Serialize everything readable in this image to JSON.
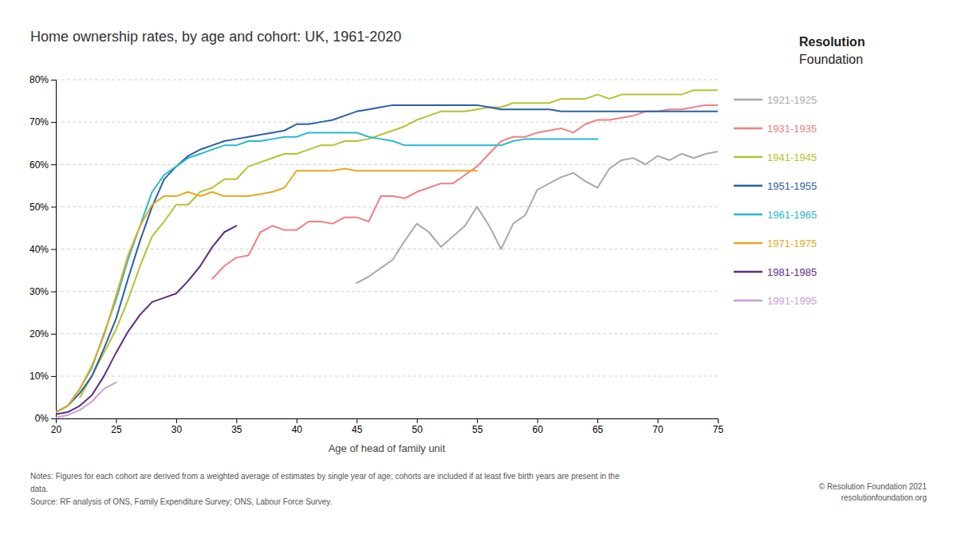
{
  "chart_data": {
    "type": "line",
    "title": "Home ownership rates, by age and cohort: UK, 1961-2020",
    "x_label": "Age of head of family unit",
    "annotations": [
      "Notes: Figures for each cohort are derived from a weighted average of estimates by single year of age; cohorts are included if at least five birth years are present in the",
      "data.",
      "Source: RF analysis of ONS, Family Expenditure Survey; ONS, Labour Force Survey.",
      "© Resolution Foundation 2021",
      "resolutionfoundation.org",
      "Resolution",
      "Foundation"
    ],
    "xlim": [
      20,
      75
    ],
    "xticks": [
      20,
      25,
      30,
      35,
      40,
      45,
      50,
      55,
      60,
      65,
      70,
      75
    ],
    "ylim": [
      0.0,
      0.8
    ],
    "yticks": [
      {
        "value": 0.0,
        "label": "0%"
      },
      {
        "value": 0.1,
        "label": "10%"
      },
      {
        "value": 0.2,
        "label": "20%"
      },
      {
        "value": 0.3,
        "label": "30%"
      },
      {
        "value": 0.4,
        "label": "40%"
      },
      {
        "value": 0.5,
        "label": "50%"
      },
      {
        "value": 0.6,
        "label": "60%"
      },
      {
        "value": 0.7,
        "label": "70%"
      },
      {
        "value": 0.8,
        "label": "80%"
      }
    ],
    "grid": true,
    "legend": "right",
    "series": [
      {
        "name": "1921-1925",
        "color": "#aaaaaa",
        "x": [
          45,
          46,
          47,
          48,
          49,
          50,
          51,
          52,
          53,
          54,
          55,
          56,
          57,
          58,
          59,
          60,
          61,
          62,
          63,
          64,
          65,
          66,
          67,
          68,
          69,
          70,
          71,
          72,
          73,
          74,
          75
        ],
        "values": [
          0.32,
          0.335,
          0.355,
          0.375,
          0.42,
          0.46,
          0.44,
          0.405,
          0.43,
          0.455,
          0.5,
          0.455,
          0.4,
          0.46,
          0.48,
          0.54,
          0.555,
          0.57,
          0.58,
          0.56,
          0.545,
          0.59,
          0.61,
          0.615,
          0.6,
          0.62,
          0.61,
          0.625,
          0.615,
          0.625,
          0.63
        ]
      },
      {
        "name": "1931-1935",
        "color": "#f08080",
        "x": [
          33,
          34,
          35,
          36,
          37,
          38,
          39,
          40,
          41,
          42,
          43,
          44,
          45,
          46,
          47,
          48,
          49,
          50,
          51,
          52,
          53,
          54,
          55,
          56,
          57,
          58,
          59,
          60,
          61,
          62,
          63,
          64,
          65,
          66,
          67,
          68,
          69,
          70,
          71,
          72,
          73,
          74,
          75
        ],
        "values": [
          0.33,
          0.36,
          0.38,
          0.385,
          0.44,
          0.455,
          0.445,
          0.445,
          0.465,
          0.465,
          0.46,
          0.475,
          0.475,
          0.465,
          0.525,
          0.525,
          0.52,
          0.535,
          0.545,
          0.555,
          0.555,
          0.575,
          0.595,
          0.625,
          0.655,
          0.665,
          0.665,
          0.675,
          0.68,
          0.685,
          0.675,
          0.695,
          0.705,
          0.705,
          0.71,
          0.715,
          0.725,
          0.725,
          0.73,
          0.73,
          0.735,
          0.74,
          0.74
        ]
      },
      {
        "name": "1941-1945",
        "color": "#b5c232",
        "x": [
          22,
          23,
          24,
          25,
          26,
          27,
          28,
          29,
          30,
          31,
          32,
          33,
          34,
          35,
          36,
          37,
          38,
          39,
          40,
          41,
          42,
          43,
          44,
          45,
          46,
          47,
          48,
          49,
          50,
          51,
          52,
          53,
          54,
          55,
          56,
          57,
          58,
          59,
          60,
          61,
          62,
          63,
          64,
          65,
          66,
          67,
          68,
          69,
          70,
          71,
          72,
          73,
          74,
          75
        ],
        "values": [
          0.05,
          0.1,
          0.155,
          0.21,
          0.28,
          0.36,
          0.43,
          0.465,
          0.505,
          0.505,
          0.535,
          0.545,
          0.565,
          0.565,
          0.595,
          0.605,
          0.615,
          0.625,
          0.625,
          0.635,
          0.645,
          0.645,
          0.655,
          0.655,
          0.66,
          0.67,
          0.68,
          0.69,
          0.705,
          0.715,
          0.725,
          0.725,
          0.725,
          0.73,
          0.735,
          0.735,
          0.745,
          0.745,
          0.745,
          0.745,
          0.755,
          0.755,
          0.755,
          0.765,
          0.755,
          0.765,
          0.765,
          0.765,
          0.765,
          0.765,
          0.765,
          0.775,
          0.775,
          0.775
        ]
      },
      {
        "name": "1951-1955",
        "color": "#2b5fa5",
        "x": [
          20,
          21,
          22,
          23,
          24,
          25,
          26,
          27,
          28,
          29,
          30,
          31,
          32,
          33,
          34,
          35,
          36,
          37,
          38,
          39,
          40,
          41,
          42,
          43,
          44,
          45,
          46,
          47,
          48,
          49,
          50,
          51,
          52,
          53,
          54,
          55,
          56,
          57,
          58,
          59,
          60,
          61,
          62,
          63,
          64,
          65,
          66,
          67,
          68,
          69,
          70,
          71,
          72,
          73,
          74,
          75
        ],
        "values": [
          0.015,
          0.03,
          0.06,
          0.1,
          0.165,
          0.235,
          0.33,
          0.42,
          0.5,
          0.565,
          0.595,
          0.62,
          0.635,
          0.645,
          0.655,
          0.66,
          0.665,
          0.67,
          0.675,
          0.68,
          0.695,
          0.695,
          0.7,
          0.705,
          0.715,
          0.725,
          0.73,
          0.735,
          0.74,
          0.74,
          0.74,
          0.74,
          0.74,
          0.74,
          0.74,
          0.74,
          0.735,
          0.73,
          0.73,
          0.73,
          0.73,
          0.73,
          0.725,
          0.725,
          0.725,
          0.725,
          0.725,
          0.725,
          0.725,
          0.725,
          0.725,
          0.725,
          0.725,
          0.725,
          0.725,
          0.725
        ]
      },
      {
        "name": "1961-1965",
        "color": "#29b8ce",
        "x": [
          20,
          21,
          22,
          23,
          24,
          25,
          26,
          27,
          28,
          29,
          30,
          31,
          32,
          33,
          34,
          35,
          36,
          37,
          38,
          39,
          40,
          41,
          42,
          43,
          44,
          45,
          46,
          47,
          48,
          49,
          50,
          51,
          52,
          53,
          54,
          55,
          56,
          57,
          58,
          59,
          60,
          61,
          62,
          63,
          64,
          65
        ],
        "values": [
          0.015,
          0.03,
          0.07,
          0.12,
          0.2,
          0.28,
          0.375,
          0.455,
          0.535,
          0.575,
          0.595,
          0.615,
          0.625,
          0.635,
          0.645,
          0.645,
          0.655,
          0.655,
          0.66,
          0.665,
          0.665,
          0.675,
          0.675,
          0.675,
          0.675,
          0.675,
          0.665,
          0.66,
          0.655,
          0.645,
          0.645,
          0.645,
          0.645,
          0.645,
          0.645,
          0.645,
          0.645,
          0.645,
          0.655,
          0.66,
          0.66,
          0.66,
          0.66,
          0.66,
          0.66,
          0.66
        ]
      },
      {
        "name": "1971-1975",
        "color": "#e8a820",
        "x": [
          20,
          21,
          22,
          23,
          24,
          25,
          26,
          27,
          28,
          29,
          30,
          31,
          32,
          33,
          34,
          35,
          36,
          37,
          38,
          39,
          40,
          41,
          42,
          43,
          44,
          45,
          46,
          47,
          48,
          49,
          50,
          51,
          52,
          53,
          54,
          55
        ],
        "values": [
          0.015,
          0.03,
          0.07,
          0.125,
          0.195,
          0.29,
          0.385,
          0.455,
          0.505,
          0.525,
          0.525,
          0.535,
          0.525,
          0.535,
          0.525,
          0.525,
          0.525,
          0.53,
          0.535,
          0.545,
          0.585,
          0.585,
          0.585,
          0.585,
          0.59,
          0.585,
          0.585,
          0.585,
          0.585,
          0.585,
          0.585,
          0.585,
          0.585,
          0.585,
          0.585,
          0.585
        ]
      },
      {
        "name": "1981-1985",
        "color": "#5b2d82",
        "x": [
          20,
          21,
          22,
          23,
          24,
          25,
          26,
          27,
          28,
          29,
          30,
          31,
          32,
          33,
          34,
          35
        ],
        "values": [
          0.01,
          0.015,
          0.03,
          0.055,
          0.1,
          0.155,
          0.205,
          0.245,
          0.275,
          0.285,
          0.295,
          0.325,
          0.36,
          0.405,
          0.44,
          0.455
        ]
      },
      {
        "name": "1991-1995",
        "color": "#c8a0d2",
        "x": [
          20,
          21,
          22,
          23,
          24,
          25
        ],
        "values": [
          0.002,
          0.008,
          0.02,
          0.04,
          0.07,
          0.085
        ]
      }
    ]
  }
}
